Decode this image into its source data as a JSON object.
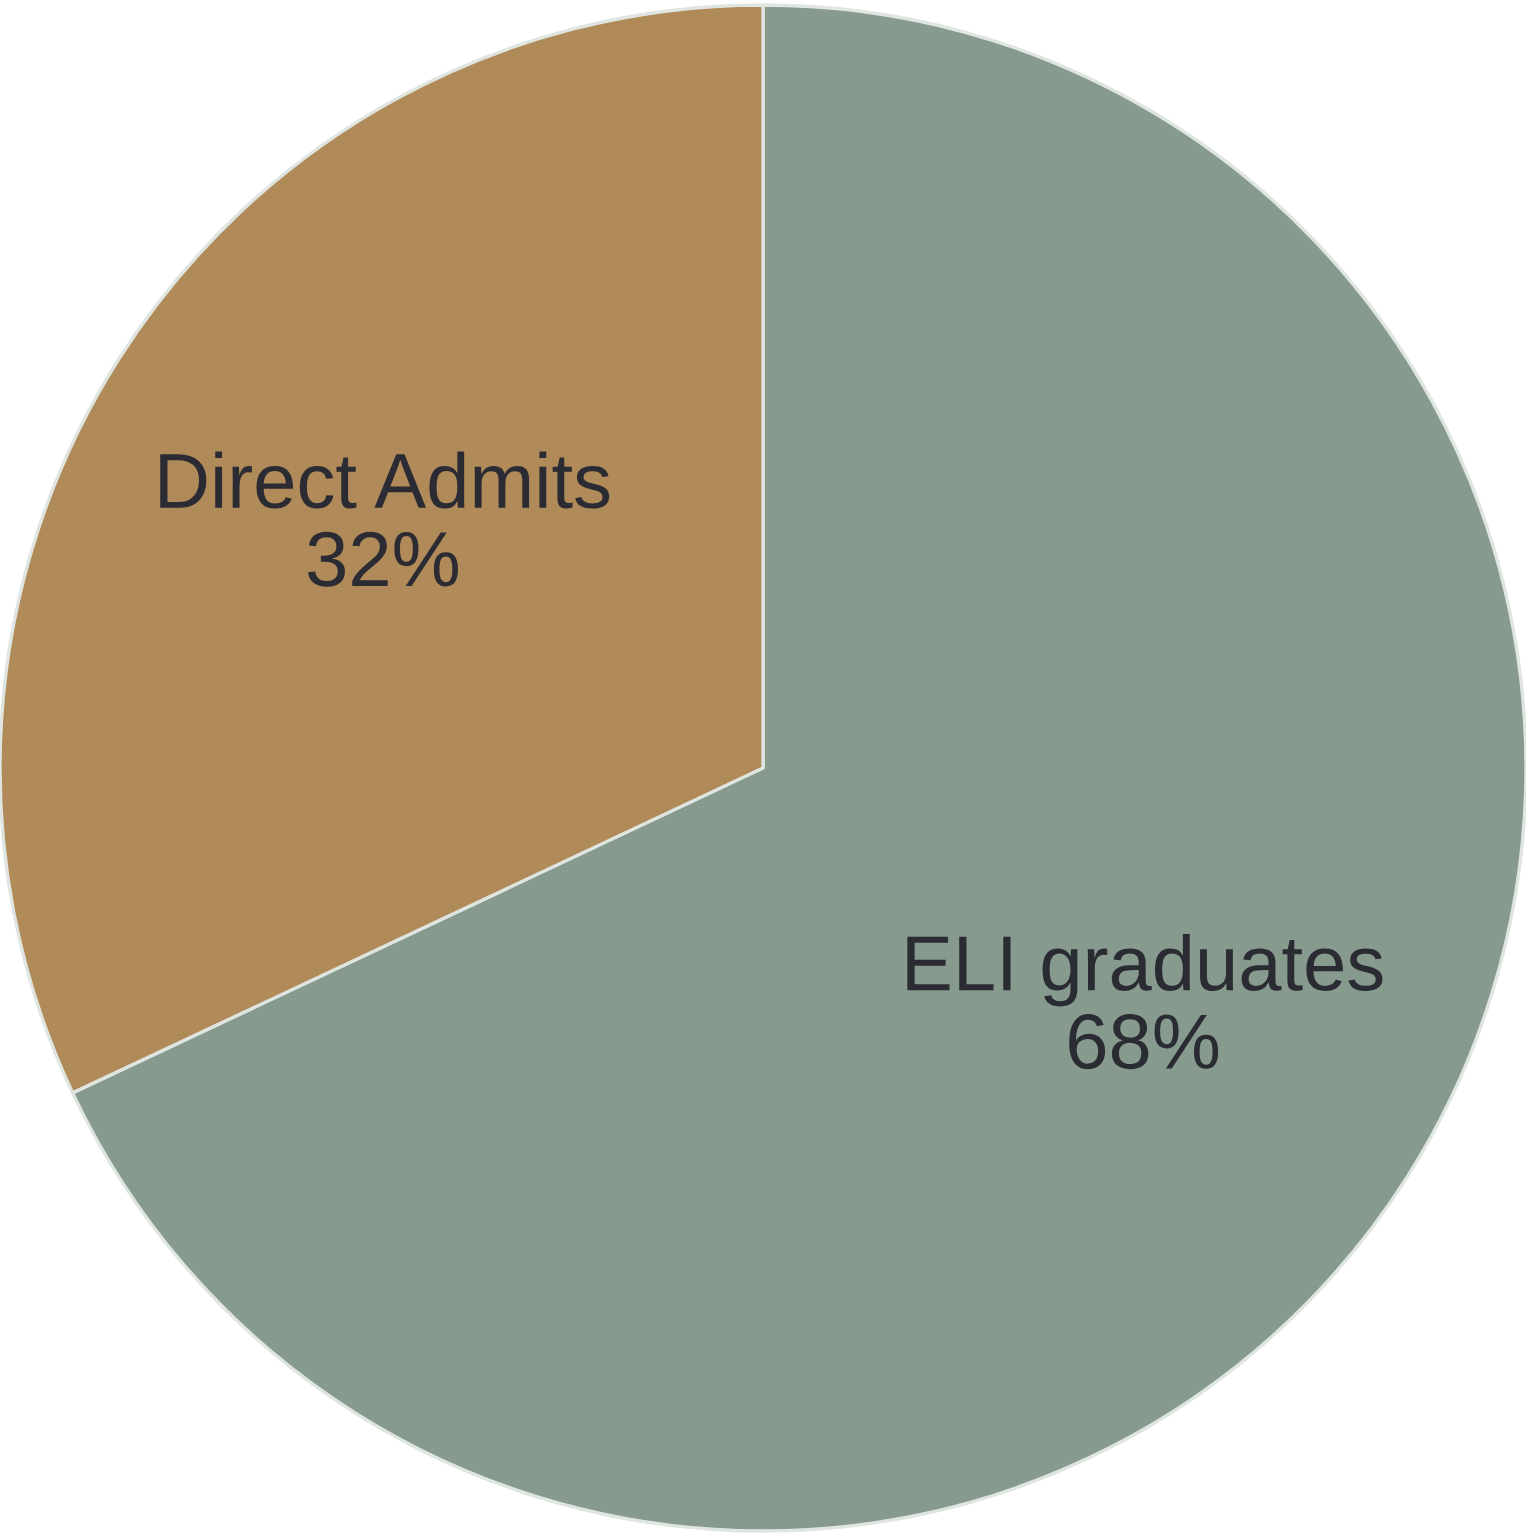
{
  "chart_data": {
    "type": "pie",
    "categories": [
      "ELI graduates",
      "Direct Admits"
    ],
    "values": [
      68,
      32
    ],
    "value_labels": [
      "68%",
      "32%"
    ],
    "colors": [
      "#869a8d",
      "#b08a58"
    ]
  }
}
